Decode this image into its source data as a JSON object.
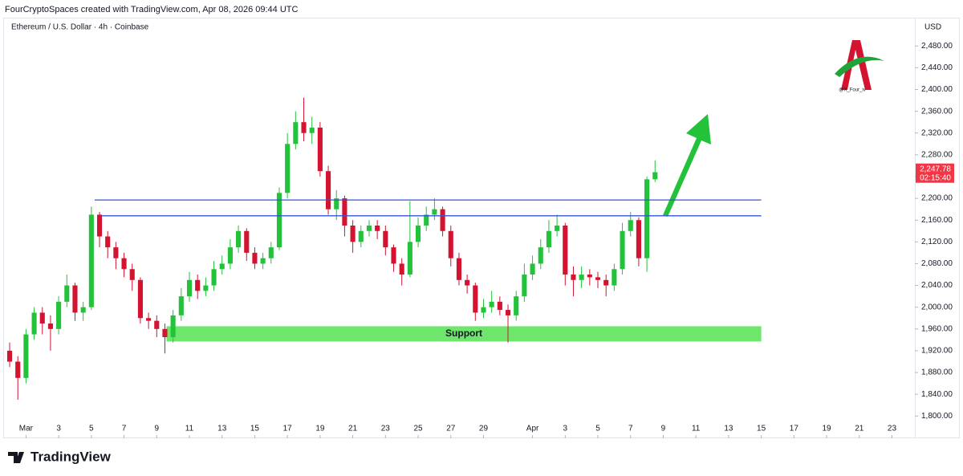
{
  "header": {
    "credit": "FourCryptoSpaces created with TradingView.com, Apr 08, 2026 09:44 UTC",
    "brand": "TradingView",
    "watermark": "@X_Four_iv"
  },
  "chart_data": {
    "type": "candlestick",
    "title": "Ethereum / U.S. Dollar · 4h · Coinbase",
    "y_unit": "USD",
    "up_color": "#22c33a",
    "down_color": "#d3132f",
    "x": [
      -1,
      -0.5,
      0,
      0.5,
      1,
      1.5,
      2,
      2.5,
      3,
      3.5,
      4,
      4.5,
      5,
      5.5,
      6,
      6.5,
      7,
      7.5,
      8,
      8.5,
      9,
      9.5,
      10,
      10.5,
      11,
      11.5,
      12,
      12.5,
      13,
      13.5,
      14,
      14.5,
      15,
      15.5,
      16,
      16.5,
      17,
      17.5,
      18,
      18.5,
      19,
      19.5,
      20,
      20.5,
      21,
      21.5,
      22,
      22.5,
      23,
      23.5,
      24,
      24.5,
      25,
      25.5,
      26,
      26.5,
      27,
      27.5,
      28,
      28.5,
      29,
      29.5,
      30,
      30.5,
      31,
      31.5,
      32,
      32.5,
      33,
      33.5,
      34,
      34.5,
      35,
      35.5,
      36,
      36.5,
      37,
      37.5,
      38,
      38.5
    ],
    "open": [
      1920,
      1900,
      1870,
      1950,
      1990,
      1970,
      1960,
      2010,
      2040,
      1990,
      2000,
      2170,
      2130,
      2110,
      2090,
      2070,
      2050,
      1980,
      1975,
      1960,
      1945,
      1985,
      2020,
      2050,
      2030,
      2040,
      2070,
      2080,
      2110,
      2140,
      2100,
      2080,
      2090,
      2110,
      2210,
      2300,
      2340,
      2320,
      2330,
      2250,
      2180,
      2200,
      2150,
      2120,
      2140,
      2150,
      2140,
      2110,
      2080,
      2060,
      2120,
      2150,
      2170,
      2180,
      2140,
      2090,
      2050,
      2040,
      1990,
      2000,
      2010,
      1995,
      1985,
      2020,
      2060,
      2080,
      2110,
      2140,
      2150,
      2060,
      2050,
      2060,
      2055,
      2050,
      2040,
      2070,
      2140,
      2160,
      2090,
      2235
    ],
    "high": [
      1935,
      1910,
      1960,
      2000,
      2000,
      1985,
      2020,
      2060,
      2045,
      2010,
      2185,
      2175,
      2140,
      2120,
      2100,
      2080,
      2055,
      1990,
      1985,
      1970,
      1995,
      2035,
      2065,
      2060,
      2055,
      2085,
      2095,
      2125,
      2150,
      2145,
      2110,
      2100,
      2120,
      2220,
      2320,
      2360,
      2385,
      2350,
      2340,
      2260,
      2215,
      2205,
      2160,
      2150,
      2160,
      2160,
      2150,
      2115,
      2090,
      2195,
      2165,
      2185,
      2200,
      2185,
      2150,
      2100,
      2060,
      2045,
      2015,
      2030,
      2020,
      2005,
      2030,
      2080,
      2095,
      2125,
      2160,
      2170,
      2155,
      2075,
      2075,
      2070,
      2065,
      2060,
      2080,
      2155,
      2175,
      2165,
      2240,
      2270
    ],
    "low": [
      1890,
      1830,
      1860,
      1940,
      1950,
      1920,
      1950,
      2000,
      1975,
      1975,
      1995,
      2110,
      2090,
      2070,
      2055,
      2030,
      1970,
      1960,
      1945,
      1915,
      1935,
      1975,
      2010,
      2015,
      2020,
      2030,
      2060,
      2070,
      2100,
      2085,
      2070,
      2070,
      2080,
      2105,
      2200,
      2290,
      2305,
      2300,
      2240,
      2170,
      2160,
      2130,
      2100,
      2110,
      2130,
      2125,
      2095,
      2065,
      2040,
      2055,
      2110,
      2140,
      2160,
      2130,
      2075,
      2040,
      2025,
      1975,
      1980,
      1990,
      1985,
      1935,
      1975,
      2010,
      2050,
      2070,
      2100,
      2130,
      2040,
      2020,
      2035,
      2040,
      2035,
      2020,
      2030,
      2060,
      2130,
      2075,
      2065,
      2230
    ],
    "close": [
      1900,
      1870,
      1950,
      1990,
      1970,
      1960,
      2010,
      2040,
      1990,
      2000,
      2170,
      2130,
      2110,
      2090,
      2070,
      2050,
      1980,
      1975,
      1960,
      1945,
      1985,
      2020,
      2050,
      2030,
      2040,
      2070,
      2080,
      2110,
      2140,
      2100,
      2080,
      2090,
      2110,
      2210,
      2300,
      2340,
      2320,
      2330,
      2250,
      2180,
      2200,
      2150,
      2120,
      2140,
      2150,
      2140,
      2110,
      2080,
      2060,
      2120,
      2150,
      2170,
      2180,
      2140,
      2090,
      2050,
      2040,
      1990,
      2000,
      2010,
      1995,
      1985,
      2020,
      2060,
      2080,
      2110,
      2140,
      2150,
      2060,
      2050,
      2060,
      2055,
      2050,
      2040,
      2070,
      2140,
      2160,
      2090,
      2235,
      2248
    ],
    "xlim": [
      -1.1,
      54.4
    ],
    "ylim": [
      1768,
      2532
    ],
    "xticks": [
      {
        "value": 0,
        "label": "Mar"
      },
      {
        "value": 2,
        "label": "3"
      },
      {
        "value": 4,
        "label": "5"
      },
      {
        "value": 6,
        "label": "7"
      },
      {
        "value": 8,
        "label": "9"
      },
      {
        "value": 10,
        "label": "11"
      },
      {
        "value": 12,
        "label": "13"
      },
      {
        "value": 14,
        "label": "15"
      },
      {
        "value": 16,
        "label": "17"
      },
      {
        "value": 18,
        "label": "19"
      },
      {
        "value": 20,
        "label": "21"
      },
      {
        "value": 22,
        "label": "23"
      },
      {
        "value": 24,
        "label": "25"
      },
      {
        "value": 26,
        "label": "27"
      },
      {
        "value": 28,
        "label": "29"
      },
      {
        "value": 31,
        "label": "Apr"
      },
      {
        "value": 33,
        "label": "3"
      },
      {
        "value": 35,
        "label": "5"
      },
      {
        "value": 37,
        "label": "7"
      },
      {
        "value": 39,
        "label": "9"
      },
      {
        "value": 41,
        "label": "11"
      },
      {
        "value": 43,
        "label": "13"
      },
      {
        "value": 45,
        "label": "15"
      },
      {
        "value": 47,
        "label": "17"
      },
      {
        "value": 49,
        "label": "19"
      },
      {
        "value": 51,
        "label": "21"
      },
      {
        "value": 53,
        "label": "23"
      }
    ],
    "yticks": [
      {
        "value": 1800,
        "label": "1,800.00"
      },
      {
        "value": 1840,
        "label": "1,840.00"
      },
      {
        "value": 1880,
        "label": "1,880.00"
      },
      {
        "value": 1920,
        "label": "1,920.00"
      },
      {
        "value": 1960,
        "label": "1,960.00"
      },
      {
        "value": 2000,
        "label": "2,000.00"
      },
      {
        "value": 2040,
        "label": "2,040.00"
      },
      {
        "value": 2080,
        "label": "2,080.00"
      },
      {
        "value": 2120,
        "label": "2,120.00"
      },
      {
        "value": 2160,
        "label": "2,160.00"
      },
      {
        "value": 2200,
        "label": "2,200.00"
      },
      {
        "value": 2240,
        "label": "2,240.00"
      },
      {
        "value": 2280,
        "label": "2,280.00"
      },
      {
        "value": 2320,
        "label": "2,320.00"
      },
      {
        "value": 2360,
        "label": "2,360.00"
      },
      {
        "value": 2400,
        "label": "2,400.00"
      },
      {
        "value": 2440,
        "label": "2,440.00"
      },
      {
        "value": 2480,
        "label": "2,480.00"
      }
    ],
    "last_price": {
      "value": 2247.78,
      "label": "2,247.78",
      "countdown": "02:15:40",
      "color": "#f23645"
    },
    "levels": [
      {
        "value": 2197,
        "from": 4.2,
        "to": 45,
        "color": "#3355d6"
      },
      {
        "value": 2168,
        "from": 4.6,
        "to": 45,
        "color": "#3355d6"
      }
    ],
    "zone": {
      "label": "Support",
      "low": 1937,
      "high": 1965,
      "from": 8.6,
      "to": 45,
      "color": "#6ee66b"
    }
  }
}
